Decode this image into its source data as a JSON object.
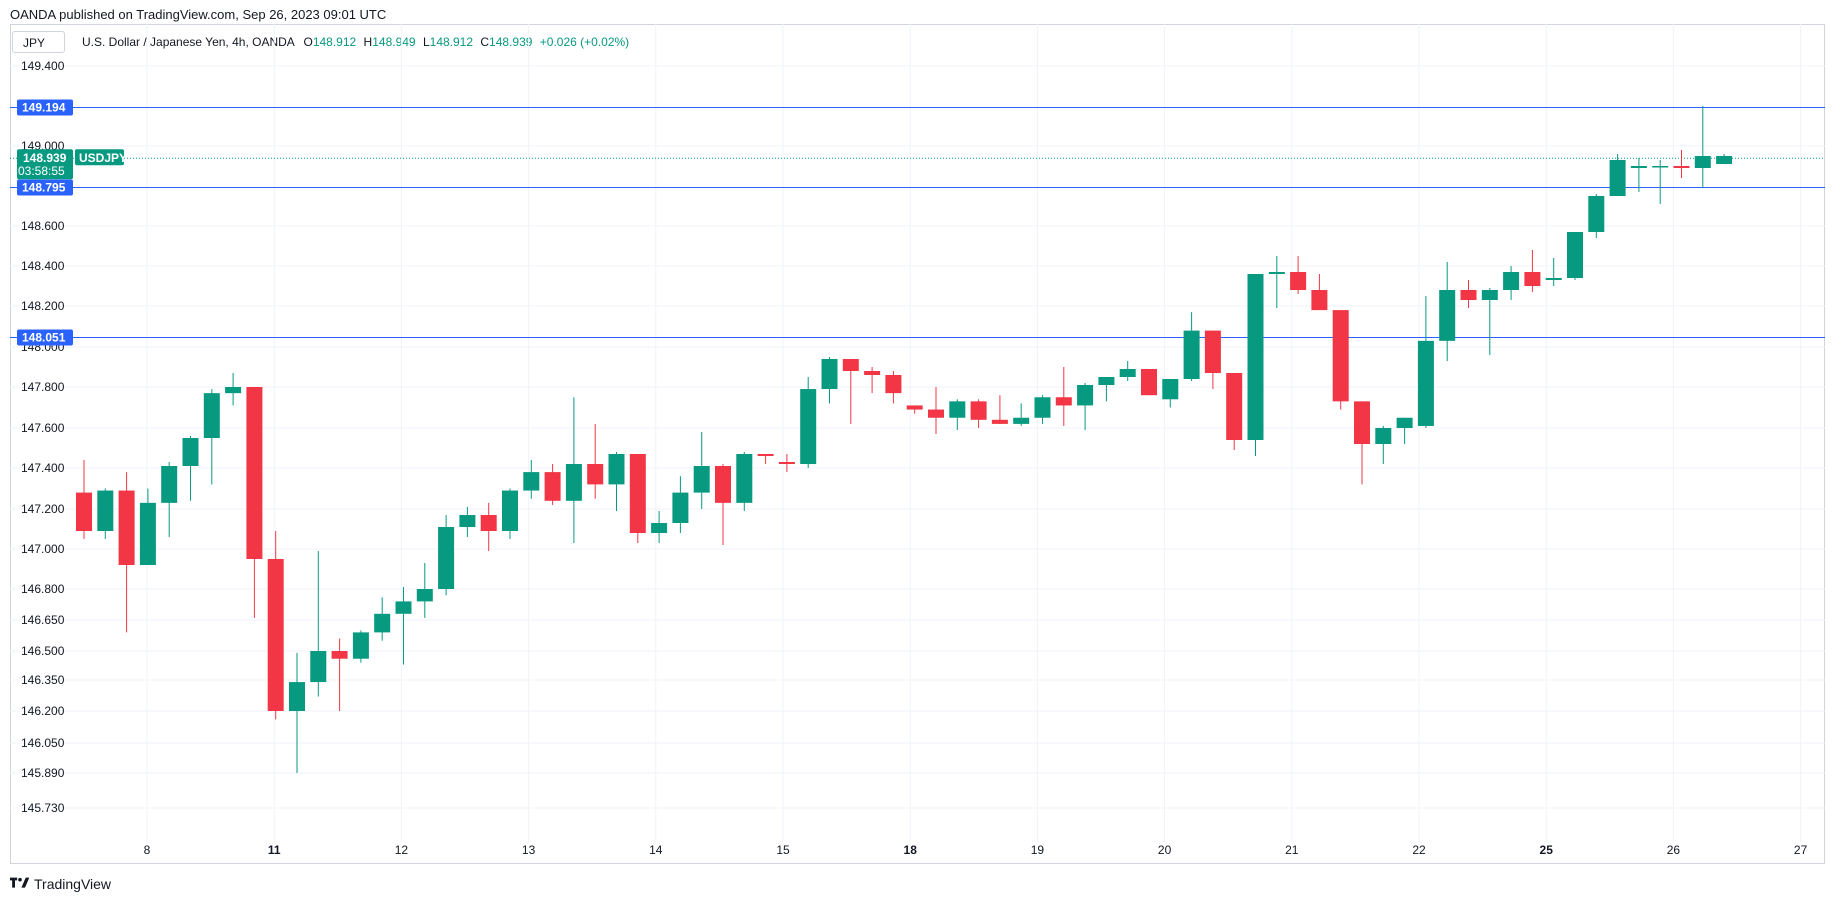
{
  "publisher": "OANDA published on TradingView.com, Sep 26, 2023 09:01 UTC",
  "symbol_box": "JPY",
  "legend": {
    "name": "U.S. Dollar / Japanese Yen, 4h, OANDA",
    "o_label": "O",
    "o_value": "148.912",
    "h_label": "H",
    "h_value": "148.949",
    "l_label": "L",
    "l_value": "148.912",
    "c_label": "C",
    "c_value": "148.939",
    "change": "+0.026 (+0.02%)"
  },
  "brand": "TradingView",
  "colors": {
    "up": "#089981",
    "down": "#f23645",
    "hline": "#2962ff",
    "grid": "#f0f3fa"
  },
  "chart_data": {
    "type": "candlestick",
    "y_ticks": [
      "149.400",
      "149.000",
      "148.600",
      "148.400",
      "148.200",
      "148.000",
      "147.800",
      "147.600",
      "147.400",
      "147.200",
      "147.000",
      "146.800",
      "146.650",
      "146.500",
      "146.350",
      "146.200",
      "146.050",
      "145.890",
      "145.730"
    ],
    "x_ticks": [
      {
        "label": "8",
        "bold": false
      },
      {
        "label": "11",
        "bold": true
      },
      {
        "label": "12",
        "bold": false
      },
      {
        "label": "13",
        "bold": false
      },
      {
        "label": "14",
        "bold": false
      },
      {
        "label": "15",
        "bold": false
      },
      {
        "label": "18",
        "bold": true
      },
      {
        "label": "19",
        "bold": false
      },
      {
        "label": "20",
        "bold": false
      },
      {
        "label": "21",
        "bold": false
      },
      {
        "label": "22",
        "bold": false
      },
      {
        "label": "25",
        "bold": true
      },
      {
        "label": "26",
        "bold": false
      },
      {
        "label": "27",
        "bold": false
      }
    ],
    "horizontal_lines": [
      "149.194",
      "148.795",
      "148.051"
    ],
    "last_price": {
      "value": "148.939",
      "countdown": "03:58:55",
      "symbol": "USDJPY"
    },
    "candles": [
      [
        147.28,
        147.44,
        147.05,
        147.09
      ],
      [
        147.09,
        147.3,
        147.05,
        147.29
      ],
      [
        147.29,
        147.38,
        146.59,
        146.92
      ],
      [
        146.92,
        147.3,
        146.92,
        147.23
      ],
      [
        147.23,
        147.43,
        147.06,
        147.41
      ],
      [
        147.41,
        147.56,
        147.24,
        147.55
      ],
      [
        147.55,
        147.79,
        147.32,
        147.77
      ],
      [
        147.77,
        147.87,
        147.71,
        147.8
      ],
      [
        147.8,
        147.8,
        146.66,
        146.95
      ],
      [
        146.95,
        147.09,
        146.16,
        146.2
      ],
      [
        146.2,
        146.49,
        145.89,
        146.34
      ],
      [
        146.34,
        146.99,
        146.27,
        146.5
      ],
      [
        146.5,
        146.56,
        146.2,
        146.46
      ],
      [
        146.46,
        146.6,
        146.44,
        146.59
      ],
      [
        146.59,
        146.76,
        146.55,
        146.68
      ],
      [
        146.68,
        146.81,
        146.43,
        146.74
      ],
      [
        146.74,
        146.93,
        146.66,
        146.8
      ],
      [
        146.8,
        147.17,
        146.77,
        147.11
      ],
      [
        147.11,
        147.21,
        147.06,
        147.17
      ],
      [
        147.17,
        147.23,
        146.99,
        147.09
      ],
      [
        147.09,
        147.3,
        147.05,
        147.29
      ],
      [
        147.29,
        147.44,
        147.25,
        147.38
      ],
      [
        147.38,
        147.42,
        147.22,
        147.24
      ],
      [
        147.24,
        147.75,
        147.03,
        147.42
      ],
      [
        147.42,
        147.62,
        147.25,
        147.32
      ],
      [
        147.32,
        147.48,
        147.19,
        147.47
      ],
      [
        147.47,
        147.47,
        147.03,
        147.08
      ],
      [
        147.08,
        147.19,
        147.03,
        147.13
      ],
      [
        147.13,
        147.36,
        147.08,
        147.28
      ],
      [
        147.28,
        147.58,
        147.2,
        147.41
      ],
      [
        147.41,
        147.42,
        147.02,
        147.23
      ],
      [
        147.23,
        147.48,
        147.19,
        147.47
      ],
      [
        147.47,
        147.47,
        147.42,
        147.46
      ],
      [
        147.43,
        147.47,
        147.38,
        147.42
      ],
      [
        147.42,
        147.85,
        147.4,
        147.79
      ],
      [
        147.79,
        147.95,
        147.72,
        147.94
      ],
      [
        147.94,
        147.94,
        147.62,
        147.88
      ],
      [
        147.88,
        147.9,
        147.77,
        147.86
      ],
      [
        147.86,
        147.88,
        147.72,
        147.77
      ],
      [
        147.71,
        147.71,
        147.67,
        147.69
      ],
      [
        147.69,
        147.8,
        147.57,
        147.65
      ],
      [
        147.65,
        147.74,
        147.59,
        147.73
      ],
      [
        147.73,
        147.74,
        147.6,
        147.64
      ],
      [
        147.64,
        147.76,
        147.62,
        147.62
      ],
      [
        147.62,
        147.72,
        147.61,
        147.65
      ],
      [
        147.65,
        147.76,
        147.62,
        147.75
      ],
      [
        147.75,
        147.9,
        147.61,
        147.71
      ],
      [
        147.71,
        147.82,
        147.59,
        147.81
      ],
      [
        147.81,
        147.85,
        147.73,
        147.85
      ],
      [
        147.85,
        147.93,
        147.83,
        147.89
      ],
      [
        147.89,
        147.89,
        147.76,
        147.76
      ],
      [
        147.74,
        147.84,
        147.7,
        147.84
      ],
      [
        147.84,
        148.17,
        147.83,
        148.08
      ],
      [
        148.08,
        148.08,
        147.79,
        147.87
      ],
      [
        147.87,
        147.87,
        147.49,
        147.54
      ],
      [
        147.54,
        148.36,
        147.46,
        148.36
      ],
      [
        148.36,
        148.45,
        148.19,
        148.37
      ],
      [
        148.37,
        148.45,
        148.26,
        148.28
      ],
      [
        148.28,
        148.36,
        148.18,
        148.18
      ],
      [
        148.18,
        148.18,
        147.69,
        147.73
      ],
      [
        147.73,
        147.73,
        147.32,
        147.52
      ],
      [
        147.52,
        147.61,
        147.42,
        147.6
      ],
      [
        147.6,
        147.65,
        147.52,
        147.65
      ],
      [
        147.61,
        148.25,
        147.6,
        148.03
      ],
      [
        148.03,
        148.42,
        147.93,
        148.28
      ],
      [
        148.28,
        148.33,
        148.19,
        148.23
      ],
      [
        148.23,
        148.29,
        147.96,
        148.28
      ],
      [
        148.28,
        148.4,
        148.23,
        148.37
      ],
      [
        148.37,
        148.48,
        148.27,
        148.3
      ],
      [
        148.33,
        148.44,
        148.3,
        148.34
      ],
      [
        148.34,
        148.57,
        148.33,
        148.57
      ],
      [
        148.57,
        148.76,
        148.54,
        148.75
      ],
      [
        148.75,
        148.96,
        148.75,
        148.93
      ],
      [
        148.89,
        148.94,
        148.77,
        148.9
      ],
      [
        148.9,
        148.93,
        148.71,
        148.9
      ],
      [
        148.9,
        148.98,
        148.84,
        148.89
      ],
      [
        148.89,
        149.2,
        148.79,
        148.95
      ],
      [
        148.91,
        148.96,
        148.91,
        148.95
      ]
    ]
  }
}
